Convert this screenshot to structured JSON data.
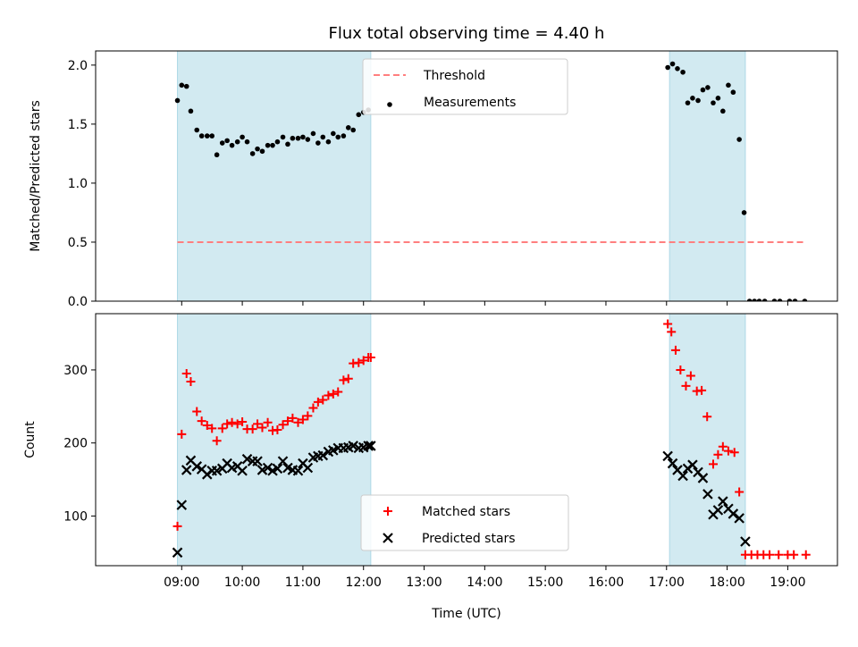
{
  "figure_title": "Flux total observing time = 4.40 h",
  "xlabel": "Time (UTC)",
  "x_ticks": [
    {
      "hour": 9,
      "label": "09:00"
    },
    {
      "hour": 10,
      "label": "10:00"
    },
    {
      "hour": 11,
      "label": "11:00"
    },
    {
      "hour": 12,
      "label": "12:00"
    },
    {
      "hour": 13,
      "label": "13:00"
    },
    {
      "hour": 14,
      "label": "14:00"
    },
    {
      "hour": 15,
      "label": "15:00"
    },
    {
      "hour": 16,
      "label": "16:00"
    },
    {
      "hour": 17,
      "label": "17:00"
    },
    {
      "hour": 18,
      "label": "18:00"
    },
    {
      "hour": 19,
      "label": "19:00"
    }
  ],
  "xlim": [
    7.58,
    19.82
  ],
  "shaded_intervals": [
    [
      8.93,
      12.12
    ],
    [
      17.05,
      18.3
    ]
  ],
  "colors": {
    "shade": "#add8e6",
    "threshold": "#ff7f7f",
    "matched": "#ff0000",
    "predicted": "#000000",
    "measure": "#000000"
  },
  "chart_data": [
    {
      "type": "scatter",
      "ylabel": "Matched/Predicted stars",
      "ylim": [
        0,
        2.12
      ],
      "yticks": [
        0.0,
        0.5,
        1.0,
        1.5,
        2.0
      ],
      "ytick_labels": [
        "0.0",
        "0.5",
        "1.0",
        "1.5",
        "2.0"
      ],
      "legend_position": "top-center",
      "threshold": {
        "name": "Threshold",
        "y": 0.5,
        "x_range": [
          8.93,
          19.3
        ]
      },
      "series": [
        {
          "name": "Measurements",
          "x": [
            8.93,
            9.0,
            9.08,
            9.15,
            9.25,
            9.33,
            9.42,
            9.5,
            9.58,
            9.67,
            9.75,
            9.83,
            9.92,
            10.0,
            10.08,
            10.17,
            10.25,
            10.33,
            10.42,
            10.5,
            10.58,
            10.67,
            10.75,
            10.83,
            10.92,
            11.0,
            11.08,
            11.17,
            11.25,
            11.33,
            11.42,
            11.5,
            11.58,
            11.67,
            11.75,
            11.83,
            11.92,
            12.0,
            12.08,
            17.02,
            17.1,
            17.18,
            17.27,
            17.35,
            17.43,
            17.52,
            17.6,
            17.68,
            17.77,
            17.85,
            17.93,
            18.02,
            18.1,
            18.2,
            18.28,
            18.37,
            18.45,
            18.53,
            18.62,
            18.78,
            18.87,
            19.03,
            19.12,
            19.28
          ],
          "y": [
            1.7,
            1.83,
            1.82,
            1.61,
            1.45,
            1.4,
            1.4,
            1.4,
            1.24,
            1.34,
            1.36,
            1.32,
            1.35,
            1.39,
            1.35,
            1.25,
            1.29,
            1.27,
            1.32,
            1.32,
            1.35,
            1.39,
            1.33,
            1.38,
            1.38,
            1.39,
            1.37,
            1.42,
            1.34,
            1.39,
            1.35,
            1.42,
            1.39,
            1.4,
            1.47,
            1.45,
            1.58,
            1.6,
            1.62,
            1.98,
            2.01,
            1.97,
            1.94,
            1.68,
            1.72,
            1.7,
            1.79,
            1.81,
            1.68,
            1.72,
            1.61,
            1.83,
            1.77,
            1.37,
            0.75,
            0.0,
            0.0,
            0.0,
            0.0,
            0.0,
            0.0,
            0.0,
            0.0,
            0.0
          ]
        }
      ]
    },
    {
      "type": "scatter",
      "ylabel": "Count",
      "ylim": [
        32,
        377
      ],
      "yticks": [
        100,
        200,
        300
      ],
      "ytick_labels": [
        "100",
        "200",
        "300"
      ],
      "legend_position": "bottom-center",
      "series": [
        {
          "name": "Matched stars",
          "marker": "+",
          "x": [
            8.93,
            9.0,
            9.08,
            9.15,
            9.25,
            9.33,
            9.42,
            9.5,
            9.58,
            9.67,
            9.75,
            9.83,
            9.92,
            10.0,
            10.08,
            10.17,
            10.25,
            10.33,
            10.42,
            10.5,
            10.58,
            10.67,
            10.75,
            10.83,
            10.92,
            11.0,
            11.08,
            11.17,
            11.25,
            11.33,
            11.42,
            11.5,
            11.58,
            11.67,
            11.75,
            11.83,
            11.92,
            12.0,
            12.08,
            12.12,
            17.02,
            17.08,
            17.15,
            17.23,
            17.32,
            17.4,
            17.5,
            17.58,
            17.67,
            17.77,
            17.85,
            17.93,
            18.02,
            18.12,
            18.2,
            18.3,
            18.4,
            18.5,
            18.6,
            18.7,
            18.85,
            19.0,
            19.1,
            19.3
          ],
          "y": [
            86,
            212,
            295,
            284,
            243,
            230,
            224,
            220,
            203,
            220,
            226,
            228,
            226,
            229,
            219,
            219,
            226,
            221,
            228,
            217,
            218,
            225,
            230,
            234,
            228,
            232,
            237,
            248,
            256,
            259,
            265,
            267,
            270,
            286,
            288,
            309,
            310,
            313,
            317,
            317,
            363,
            352,
            327,
            300,
            278,
            292,
            271,
            272,
            236,
            171,
            184,
            195,
            189,
            187,
            133,
            47,
            47,
            47,
            47,
            47,
            47,
            47,
            47,
            47
          ]
        },
        {
          "name": "Predicted stars",
          "marker": "x",
          "x": [
            8.93,
            9.0,
            9.08,
            9.15,
            9.25,
            9.33,
            9.42,
            9.5,
            9.58,
            9.67,
            9.75,
            9.83,
            9.92,
            10.0,
            10.08,
            10.17,
            10.25,
            10.33,
            10.42,
            10.5,
            10.58,
            10.67,
            10.75,
            10.83,
            10.92,
            11.0,
            11.08,
            11.17,
            11.25,
            11.33,
            11.42,
            11.5,
            11.58,
            11.67,
            11.75,
            11.83,
            11.92,
            12.0,
            12.08,
            12.12,
            17.02,
            17.1,
            17.18,
            17.27,
            17.35,
            17.43,
            17.52,
            17.6,
            17.68,
            17.77,
            17.85,
            17.93,
            18.02,
            18.1,
            18.2,
            18.3
          ],
          "y": [
            50,
            115,
            163,
            176,
            168,
            164,
            157,
            162,
            162,
            165,
            172,
            166,
            168,
            162,
            178,
            175,
            175,
            163,
            166,
            162,
            165,
            175,
            166,
            163,
            162,
            172,
            166,
            180,
            182,
            183,
            188,
            190,
            193,
            193,
            194,
            196,
            193,
            194,
            196,
            196,
            182,
            172,
            163,
            155,
            165,
            170,
            160,
            152,
            130,
            102,
            108,
            120,
            110,
            103,
            97,
            65
          ]
        }
      ]
    }
  ]
}
